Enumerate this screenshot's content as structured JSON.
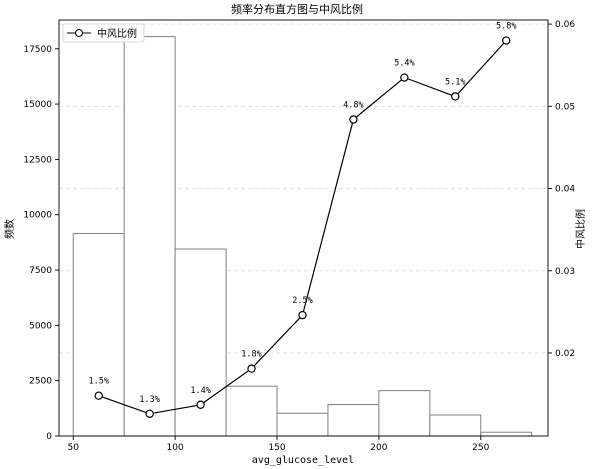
{
  "chart_data": {
    "type": "bar+line",
    "title": "频率分布直方图与中风比例",
    "xlabel": "avg_glucose_level",
    "ylabel_left": "频数",
    "ylabel_right": "中风比例",
    "xlim": [
      43,
      283
    ],
    "ylim_left": [
      0,
      18800
    ],
    "ylim_right": [
      0.0099,
      0.0605
    ],
    "x_ticks": [
      50,
      100,
      150,
      200,
      250
    ],
    "y_left_ticks": [
      0,
      2500,
      5000,
      7500,
      10000,
      12500,
      15000,
      17500
    ],
    "y_right_ticks": [
      0.02,
      0.03,
      0.04,
      0.05,
      0.06
    ],
    "histogram": {
      "name": "频数",
      "bins": [
        {
          "start": 50,
          "end": 75,
          "count": 9150
        },
        {
          "start": 75,
          "end": 100,
          "count": 18050
        },
        {
          "start": 100,
          "end": 125,
          "count": 8450
        },
        {
          "start": 125,
          "end": 150,
          "count": 2250
        },
        {
          "start": 150,
          "end": 175,
          "count": 1030
        },
        {
          "start": 175,
          "end": 200,
          "count": 1420
        },
        {
          "start": 200,
          "end": 225,
          "count": 2050
        },
        {
          "start": 225,
          "end": 250,
          "count": 950
        },
        {
          "start": 250,
          "end": 275,
          "count": 170
        }
      ],
      "edge_color": "#808080"
    },
    "series": [
      {
        "name": "中风比例",
        "x": [
          62.5,
          87.5,
          112.5,
          137.5,
          162.5,
          187.5,
          212.5,
          237.5,
          262.5
        ],
        "values": [
          0.0148,
          0.0126,
          0.0137,
          0.0181,
          0.0246,
          0.0484,
          0.0535,
          0.0512,
          0.058
        ],
        "labels": [
          "1.5%",
          "1.3%",
          "1.4%",
          "1.8%",
          "2.5%",
          "4.8%",
          "5.4%",
          "5.1%",
          "5.8%"
        ],
        "color": "#000000"
      }
    ],
    "grid": {
      "y_right": true,
      "style": "dashed"
    },
    "legend": {
      "placement": "top-left",
      "entries": [
        "中风比例"
      ]
    }
  }
}
